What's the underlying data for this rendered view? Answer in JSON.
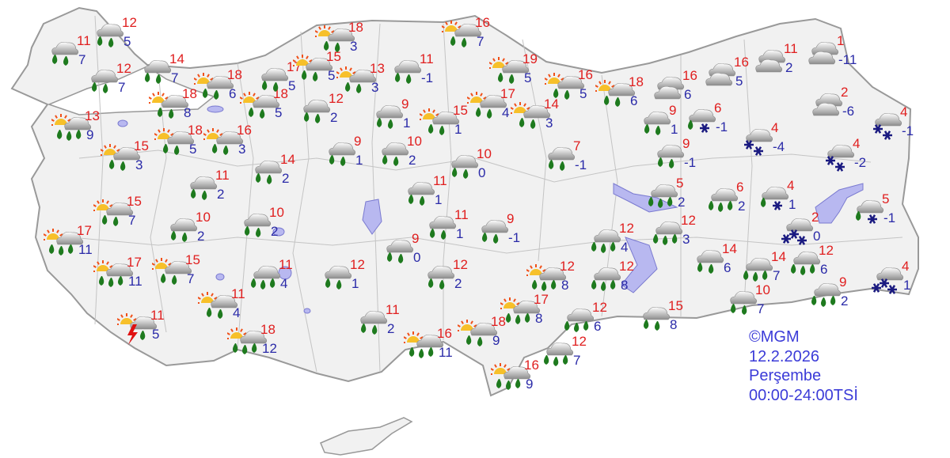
{
  "colors": {
    "max_temp": "#e01e1e",
    "min_temp": "#2a2aa8",
    "land": "#f1f1f1",
    "border": "#999999",
    "water": "#b8b8f0",
    "rain_drop": "#1e7a1e",
    "snow": "#1a1a80",
    "sun": "#f07818"
  },
  "credit": {
    "source": "©MGM",
    "date": "12.2.2026",
    "day": "Perşembe",
    "period": "00:00-24:00TSİ"
  },
  "stations": [
    {
      "icon": "rain",
      "max": "11",
      "min": "7"
    },
    {
      "icon": "rain",
      "max": "12",
      "min": "5"
    },
    {
      "icon": "rain",
      "max": "12",
      "min": "7"
    },
    {
      "icon": "rain",
      "max": "14",
      "min": "7"
    },
    {
      "icon": "sun-rain",
      "max": "18",
      "min": "6"
    },
    {
      "icon": "sun-rain",
      "max": "18",
      "min": "8"
    },
    {
      "icon": "sun-rain-heavy",
      "max": "13",
      "min": "9"
    },
    {
      "icon": "sun-rain",
      "max": "15",
      "min": "3"
    },
    {
      "icon": "sun-rain",
      "max": "18",
      "min": "5"
    },
    {
      "icon": "sun-rain",
      "max": "16",
      "min": "3"
    },
    {
      "icon": "sun-rain",
      "max": "18",
      "min": "5"
    },
    {
      "icon": "rain",
      "max": "17",
      "min": "5"
    },
    {
      "icon": "sun-rain",
      "max": "15",
      "min": "5"
    },
    {
      "icon": "sun-rain",
      "max": "18",
      "min": "3"
    },
    {
      "icon": "sun-rain",
      "max": "13",
      "min": "3"
    },
    {
      "icon": "rain",
      "max": "12",
      "min": "2"
    },
    {
      "icon": "rain",
      "max": "11",
      "min": "2"
    },
    {
      "icon": "rain",
      "max": "14",
      "min": "2"
    },
    {
      "icon": "sun-rain",
      "max": "15",
      "min": "7"
    },
    {
      "icon": "rain",
      "max": "10",
      "min": "2"
    },
    {
      "icon": "rain",
      "max": "10",
      "min": "2"
    },
    {
      "icon": "sun-rain-heavy",
      "max": "17",
      "min": "11"
    },
    {
      "icon": "sun-rain-heavy",
      "max": "17",
      "min": "11"
    },
    {
      "icon": "sun-rain",
      "max": "15",
      "min": "7"
    },
    {
      "icon": "rain-heavy",
      "max": "11",
      "min": "4"
    },
    {
      "icon": "sun-rain",
      "max": "11",
      "min": "4"
    },
    {
      "icon": "sun-thunder",
      "max": "11",
      "min": "5"
    },
    {
      "icon": "sun-rain-heavy",
      "max": "18",
      "min": "12"
    },
    {
      "icon": "rain",
      "max": "11",
      "min": "-1"
    },
    {
      "icon": "sun-rain",
      "max": "16",
      "min": "7"
    },
    {
      "icon": "rain",
      "max": "9",
      "min": "1"
    },
    {
      "icon": "sun-rain",
      "max": "15",
      "min": "1"
    },
    {
      "icon": "rain",
      "max": "9",
      "min": "1"
    },
    {
      "icon": "rain",
      "max": "10",
      "min": "2"
    },
    {
      "icon": "rain",
      "max": "10",
      "min": "0"
    },
    {
      "icon": "rain",
      "max": "11",
      "min": "1"
    },
    {
      "icon": "rain",
      "max": "11",
      "min": "1"
    },
    {
      "icon": "rain",
      "max": "9",
      "min": "-1"
    },
    {
      "icon": "rain",
      "max": "9",
      "min": "0"
    },
    {
      "icon": "rain",
      "max": "12",
      "min": "1"
    },
    {
      "icon": "rain",
      "max": "12",
      "min": "2"
    },
    {
      "icon": "rain",
      "max": "11",
      "min": "2"
    },
    {
      "icon": "sun-rain-heavy",
      "max": "16",
      "min": "11"
    },
    {
      "icon": "sun-rain",
      "max": "18",
      "min": "9"
    },
    {
      "icon": "sun-rain-heavy",
      "max": "16",
      "min": "9"
    },
    {
      "icon": "sun-rain-heavy",
      "max": "17",
      "min": "8"
    },
    {
      "icon": "sun-rain-heavy",
      "max": "12",
      "min": "8"
    },
    {
      "icon": "sun-rain",
      "max": "19",
      "min": "5"
    },
    {
      "icon": "sun-rain",
      "max": "17",
      "min": "4"
    },
    {
      "icon": "sun-rain",
      "max": "14",
      "min": "3"
    },
    {
      "icon": "sun-rain",
      "max": "16",
      "min": "5"
    },
    {
      "icon": "sun-rain",
      "max": "18",
      "min": "6"
    },
    {
      "icon": "rain",
      "max": "7",
      "min": "-1"
    },
    {
      "icon": "rain-heavy",
      "max": "12",
      "min": "4"
    },
    {
      "icon": "rain-heavy",
      "max": "12",
      "min": "8"
    },
    {
      "icon": "rain-heavy",
      "max": "12",
      "min": "6"
    },
    {
      "icon": "rain-heavy",
      "max": "12",
      "min": "7"
    },
    {
      "icon": "rain",
      "max": "15",
      "min": "8"
    },
    {
      "icon": "rain",
      "max": "9",
      "min": "1"
    },
    {
      "icon": "cloudy",
      "max": "16",
      "min": "6"
    },
    {
      "icon": "cloudy",
      "max": "16",
      "min": "5"
    },
    {
      "icon": "cloudy",
      "max": "11",
      "min": "2"
    },
    {
      "icon": "cloudy",
      "max": "1",
      "min": "-11"
    },
    {
      "icon": "cloudy",
      "max": "2",
      "min": "-6"
    },
    {
      "icon": "sleet",
      "max": "6",
      "min": "-1"
    },
    {
      "icon": "snow",
      "max": "4",
      "min": "-4"
    },
    {
      "icon": "snow",
      "max": "4",
      "min": "-1"
    },
    {
      "icon": "snow",
      "max": "4",
      "min": "-2"
    },
    {
      "icon": "rain",
      "max": "9",
      "min": "-1"
    },
    {
      "icon": "rain-heavy",
      "max": "5",
      "min": "2"
    },
    {
      "icon": "rain-heavy",
      "max": "6",
      "min": "2"
    },
    {
      "icon": "sleet",
      "max": "4",
      "min": "1"
    },
    {
      "icon": "sleet",
      "max": "5",
      "min": "-1"
    },
    {
      "icon": "snow-heavy",
      "max": "2",
      "min": "0"
    },
    {
      "icon": "rain-heavy",
      "max": "12",
      "min": "3"
    },
    {
      "icon": "rain",
      "max": "14",
      "min": "6"
    },
    {
      "icon": "rain-heavy",
      "max": "14",
      "min": "7"
    },
    {
      "icon": "rain-heavy",
      "max": "12",
      "min": "6"
    },
    {
      "icon": "snow-heavy",
      "max": "4",
      "min": "1"
    },
    {
      "icon": "rain",
      "max": "10",
      "min": "7"
    },
    {
      "icon": "rain-heavy",
      "max": "9",
      "min": "2"
    }
  ]
}
